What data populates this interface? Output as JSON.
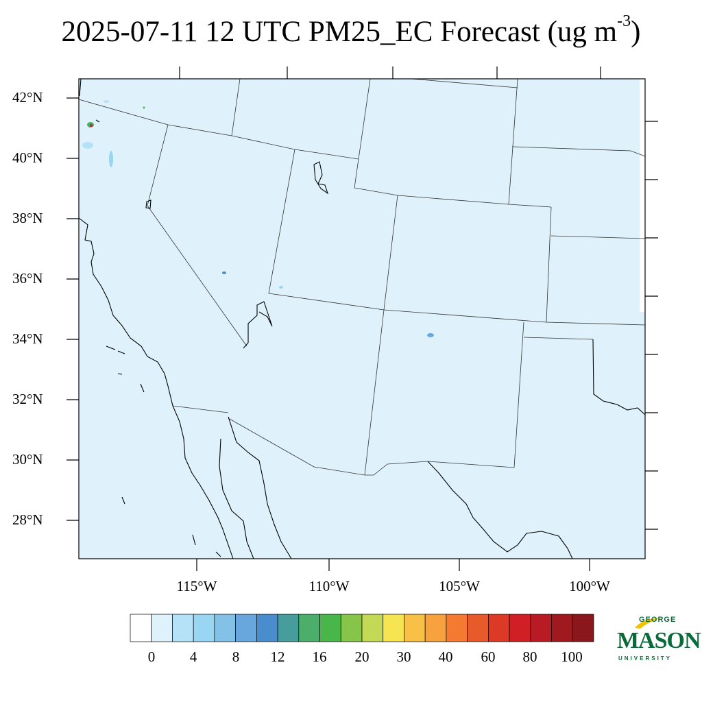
{
  "title": {
    "main": "2025-07-11 12 UTC PM25_EC Forecast (ug m",
    "superscript": "-3",
    "close": ")"
  },
  "map": {
    "background_color": "#dff1fa",
    "border_color": "#000000",
    "lat_labels": [
      "42°N",
      "40°N",
      "38°N",
      "36°N",
      "34°N",
      "32°N",
      "30°N",
      "28°N"
    ],
    "lon_labels": [
      "115°W",
      "110°W",
      "105°W",
      "100°W"
    ]
  },
  "colorbar": {
    "colors": [
      "#ffffff",
      "#dff1fa",
      "#b4e2f6",
      "#99d6f4",
      "#84c1e6",
      "#68a7dd",
      "#4a8dcc",
      "#479d9c",
      "#4cae6b",
      "#49b649",
      "#86c44a",
      "#c3d955",
      "#f6e551",
      "#f8c047",
      "#f7a23f",
      "#f47a31",
      "#e75a2a",
      "#dc3a27",
      "#d11f26",
      "#b81b23",
      "#a0191f",
      "#8a171b"
    ],
    "labels": [
      "0",
      "4",
      "8",
      "12",
      "16",
      "20",
      "30",
      "40",
      "60",
      "80",
      "100"
    ]
  },
  "logo": {
    "line1": "GEORGE",
    "line2": "MASON",
    "line3": "UNIVERSITY",
    "color": "#0a6b3a",
    "accent": "#f2c200"
  }
}
